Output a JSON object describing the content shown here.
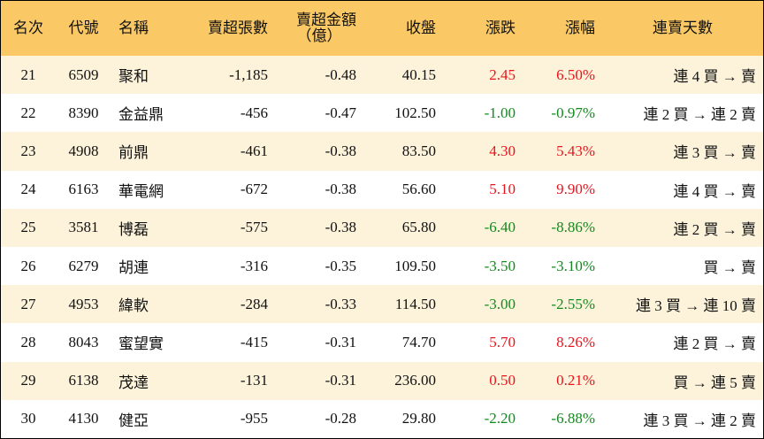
{
  "table": {
    "headers": [
      [
        "名次"
      ],
      [
        "代號"
      ],
      [
        "名稱"
      ],
      [
        "賣超張數"
      ],
      [
        "賣超金額",
        "（億）"
      ],
      [
        "收盤"
      ],
      [
        "漲跌"
      ],
      [
        "漲幅"
      ],
      [
        "連賣天數"
      ]
    ],
    "up_color": "#e8141c",
    "down_color": "#138a1e",
    "rows": [
      [
        "21",
        "6509",
        "聚和",
        "-1,185",
        "-0.48",
        "40.15",
        "2.45",
        "6.50%",
        "連 4 買 → 賣"
      ],
      [
        "22",
        "8390",
        "金益鼎",
        "-456",
        "-0.47",
        "102.50",
        "-1.00",
        "-0.97%",
        "連 2 買 → 連 2 賣"
      ],
      [
        "23",
        "4908",
        "前鼎",
        "-461",
        "-0.38",
        "83.50",
        "4.30",
        "5.43%",
        "連 3 買 → 賣"
      ],
      [
        "24",
        "6163",
        "華電網",
        "-672",
        "-0.38",
        "56.60",
        "5.10",
        "9.90%",
        "連 4 買 → 賣"
      ],
      [
        "25",
        "3581",
        "博磊",
        "-575",
        "-0.38",
        "65.80",
        "-6.40",
        "-8.86%",
        "連 2 買 → 賣"
      ],
      [
        "26",
        "6279",
        "胡連",
        "-316",
        "-0.35",
        "109.50",
        "-3.50",
        "-3.10%",
        "買 → 賣"
      ],
      [
        "27",
        "4953",
        "緯軟",
        "-284",
        "-0.33",
        "114.50",
        "-3.00",
        "-2.55%",
        "連 3 買 → 連 10 賣"
      ],
      [
        "28",
        "8043",
        "蜜望實",
        "-415",
        "-0.31",
        "74.70",
        "5.70",
        "8.26%",
        "連 2 買 → 賣"
      ],
      [
        "29",
        "6138",
        "茂達",
        "-131",
        "-0.31",
        "236.00",
        "0.50",
        "0.21%",
        "買 → 連 5 賣"
      ],
      [
        "30",
        "4130",
        "健亞",
        "-955",
        "-0.28",
        "29.80",
        "-2.20",
        "-6.88%",
        "連 3 買 → 連 2 賣"
      ]
    ]
  }
}
